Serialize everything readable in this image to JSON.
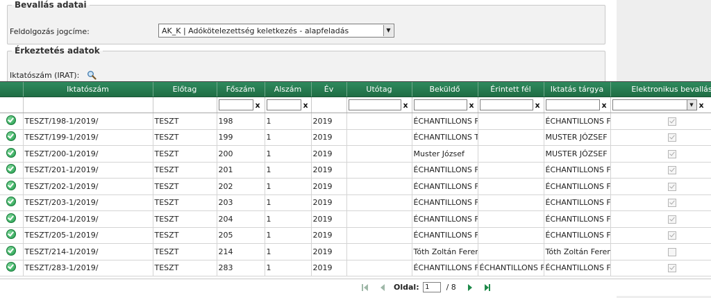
{
  "bevallas": {
    "legend": "Bevallás adatai",
    "label": "Feldolgozás jogcíme:",
    "selected_value": "AK_K | Adókötelezettség keletkezés - alapfeladás"
  },
  "erkeztetes": {
    "legend": "Érkeztetés adatok",
    "label": "Iktatószám (IRAT):"
  },
  "grid": {
    "columns": [
      "",
      "Iktatószám",
      "Előtag",
      "Főszám",
      "Alszám",
      "Év",
      "Utótag",
      "Beküldő",
      "Érintett fél",
      "Iktatás tárgya",
      "Elektronikus bevallás"
    ],
    "filter_clear_label": "x",
    "rows": [
      {
        "iktatoszam": "TESZT/198-1/2019/",
        "elotag": "TESZT",
        "foszam": "198",
        "alszam": "1",
        "ev": "2019",
        "utotag": "",
        "bekuldo": "ÉCHANTILLONS F",
        "erintett": "",
        "targy": "ÉCHANTILLONS F",
        "elektronikus": true
      },
      {
        "iktatoszam": "TESZT/199-1/2019/",
        "elotag": "TESZT",
        "foszam": "199",
        "alszam": "1",
        "ev": "2019",
        "utotag": "",
        "bekuldo": "ÉCHANTILLONS T",
        "erintett": "",
        "targy": "MUSTER JÓZSEF (",
        "elektronikus": true
      },
      {
        "iktatoszam": "TESZT/200-1/2019/",
        "elotag": "TESZT",
        "foszam": "200",
        "alszam": "1",
        "ev": "2019",
        "utotag": "",
        "bekuldo": "Muster József",
        "erintett": "",
        "targy": "MUSTER JÓZSEF (",
        "elektronikus": true
      },
      {
        "iktatoszam": "TESZT/201-1/2019/",
        "elotag": "TESZT",
        "foszam": "201",
        "alszam": "1",
        "ev": "2019",
        "utotag": "",
        "bekuldo": "ÉCHANTILLONS F",
        "erintett": "",
        "targy": "ÉCHANTILLONS F",
        "elektronikus": true
      },
      {
        "iktatoszam": "TESZT/202-1/2019/",
        "elotag": "TESZT",
        "foszam": "202",
        "alszam": "1",
        "ev": "2019",
        "utotag": "",
        "bekuldo": "ÉCHANTILLONS F",
        "erintett": "",
        "targy": "ÉCHANTILLONS F",
        "elektronikus": true
      },
      {
        "iktatoszam": "TESZT/203-1/2019/",
        "elotag": "TESZT",
        "foszam": "203",
        "alszam": "1",
        "ev": "2019",
        "utotag": "",
        "bekuldo": "ÉCHANTILLONS F",
        "erintett": "",
        "targy": "ÉCHANTILLONS F",
        "elektronikus": true
      },
      {
        "iktatoszam": "TESZT/204-1/2019/",
        "elotag": "TESZT",
        "foszam": "204",
        "alszam": "1",
        "ev": "2019",
        "utotag": "",
        "bekuldo": "ÉCHANTILLONS F",
        "erintett": "",
        "targy": "ÉCHANTILLONS F",
        "elektronikus": true
      },
      {
        "iktatoszam": "TESZT/205-1/2019/",
        "elotag": "TESZT",
        "foszam": "205",
        "alszam": "1",
        "ev": "2019",
        "utotag": "",
        "bekuldo": "ÉCHANTILLONS F",
        "erintett": "",
        "targy": "ÉCHANTILLONS F",
        "elektronikus": true
      },
      {
        "iktatoszam": "TESZT/214-1/2019/",
        "elotag": "TESZT",
        "foszam": "214",
        "alszam": "1",
        "ev": "2019",
        "utotag": "",
        "bekuldo": "Tóth Zoltán Feren",
        "erintett": "",
        "targy": "Tóth Zoltán Feren",
        "elektronikus": false
      },
      {
        "iktatoszam": "TESZT/283-1/2019/",
        "elotag": "TESZT",
        "foszam": "283",
        "alszam": "1",
        "ev": "2019",
        "utotag": "",
        "bekuldo": "ÉCHANTILLONS F",
        "erintett": "ÉCHANTILLONS F",
        "targy": "ÉCHANTILLONS F",
        "elektronikus": true
      }
    ]
  },
  "pager": {
    "label": "Oldal:",
    "current_page": "1",
    "total": "/ 8"
  },
  "icons": {
    "status": "check-circle-icon",
    "search": "magnifier-icon"
  },
  "colors": {
    "header_green": "#1f6d44",
    "status_green": "#1f9a4a"
  }
}
